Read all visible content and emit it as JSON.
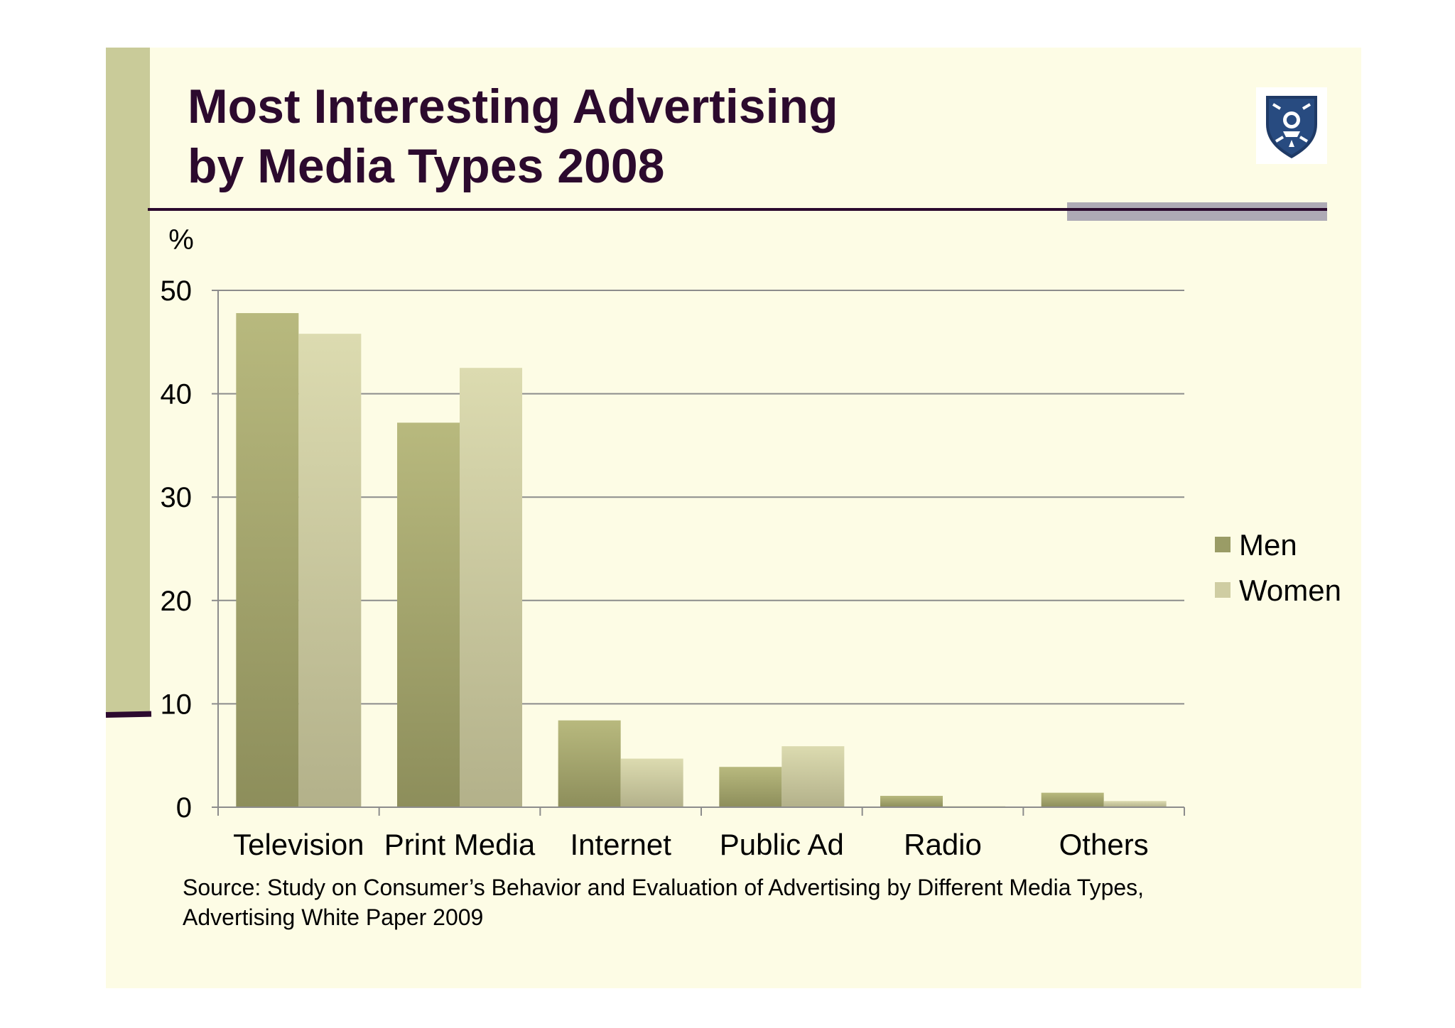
{
  "slide": {
    "title_line1": "Most Interesting Advertising",
    "title_line2": "by Media Types 2008",
    "source": "Source: Study on Consumer’s Behavior and Evaluation of Advertising by Different Media Types, Advertising White Paper 2009",
    "logo_icon": "shield-crest-icon",
    "colors": {
      "title": "#2c0a2e",
      "background": "#fdfce5",
      "accent_bar": "#c9cb99"
    }
  },
  "chart_data": {
    "type": "bar",
    "title": "",
    "ylabel": "%",
    "xlabel": "",
    "categories": [
      "Television",
      "Print Media",
      "Internet",
      "Public Ad",
      "Radio",
      "Others"
    ],
    "series": [
      {
        "name": "Men",
        "values": [
          47.8,
          37.2,
          8.4,
          3.9,
          1.1,
          1.4
        ],
        "color": "#a4a66e"
      },
      {
        "name": "Women",
        "values": [
          45.8,
          42.5,
          4.7,
          5.9,
          0.1,
          0.6
        ],
        "color": "#cfcda2"
      }
    ],
    "ylim": [
      0,
      50
    ],
    "yticks": [
      0,
      10,
      20,
      30,
      40,
      50
    ],
    "grid": true,
    "legend_position": "right"
  }
}
